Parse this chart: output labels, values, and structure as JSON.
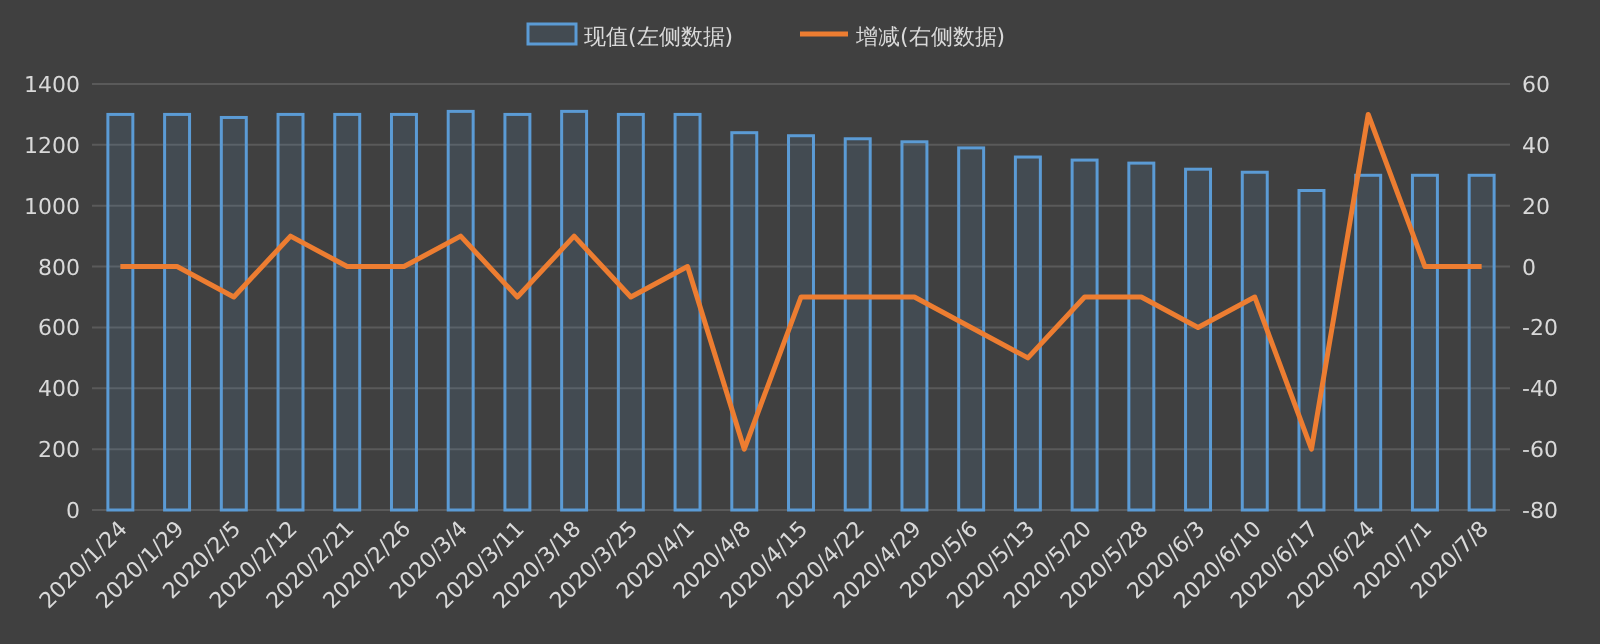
{
  "chart_data": {
    "type": "bar",
    "categories": [
      "2020/1/24",
      "2020/1/29",
      "2020/2/5",
      "2020/2/12",
      "2020/2/21",
      "2020/2/26",
      "2020/3/4",
      "2020/3/11",
      "2020/3/18",
      "2020/3/25",
      "2020/4/1",
      "2020/4/8",
      "2020/4/15",
      "2020/4/22",
      "2020/4/29",
      "2020/5/6",
      "2020/5/13",
      "2020/5/20",
      "2020/5/28",
      "2020/6/3",
      "2020/6/10",
      "2020/6/17",
      "2020/6/24",
      "2020/7/1",
      "2020/7/8"
    ],
    "series": [
      {
        "name": "现值(左侧数据)",
        "color": "#5b9bd5",
        "values": [
          1300,
          1300,
          1290,
          1300,
          1300,
          1300,
          1310,
          1300,
          1310,
          1300,
          1300,
          1240,
          1230,
          1220,
          1210,
          1190,
          1160,
          1150,
          1140,
          1120,
          1110,
          1050,
          1100,
          1100,
          1100
        ]
      },
      {
        "name": "增减(右侧数据)",
        "type": "line",
        "axis": "y2",
        "color": "#ed7d31",
        "values": [
          0,
          0,
          -10,
          10,
          0,
          0,
          10,
          -10,
          10,
          -10,
          0,
          -60,
          -10,
          -10,
          -10,
          -20,
          -30,
          -10,
          -10,
          -20,
          -10,
          -60,
          50,
          0,
          0
        ]
      }
    ],
    "ylim": [
      0,
      1400
    ],
    "yticks": [
      0,
      200,
      400,
      600,
      800,
      1000,
      1200,
      1400
    ],
    "y2lim": [
      -80,
      60
    ],
    "y2ticks": [
      -80,
      -60,
      -40,
      -20,
      0,
      20,
      40,
      60
    ],
    "grid": "y",
    "legend": "top"
  }
}
